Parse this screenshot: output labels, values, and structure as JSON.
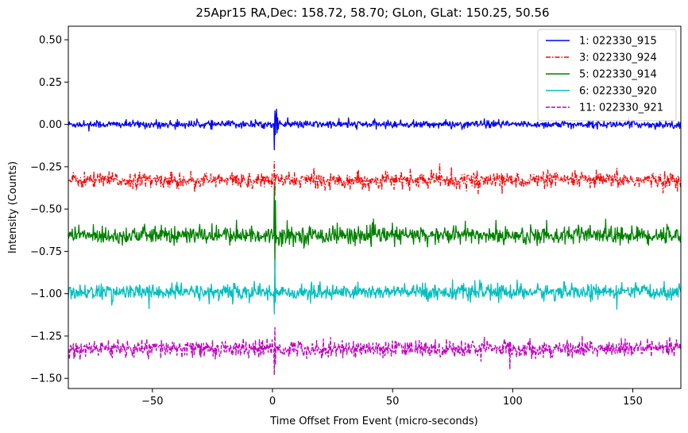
{
  "chart_data": {
    "type": "line",
    "title": "25Apr15 RA,Dec:  158.72,  58.70; GLon, GLat:  150.25,  50.56",
    "xlabel": "Time Offset From Event (micro-seconds)",
    "ylabel": "Intensity (Counts)",
    "xlim": [
      -85,
      170
    ],
    "ylim": [
      -1.56,
      0.58
    ],
    "xticks": [
      -50,
      0,
      50,
      100,
      150
    ],
    "xtick_labels": [
      "−50",
      "0",
      "50",
      "100",
      "150"
    ],
    "yticks": [
      0.5,
      0.25,
      0.0,
      -0.25,
      -0.5,
      -0.75,
      -1.0,
      -1.25,
      -1.5
    ],
    "ytick_labels": [
      "0.50",
      "0.25",
      "0.00",
      "−0.25",
      "−0.50",
      "−0.75",
      "−1.00",
      "−1.25",
      "−1.50"
    ],
    "legend_position": "top-right",
    "grid": false,
    "event_time": 0,
    "series": [
      {
        "name": "1: 022330_915",
        "color": "#0000ff",
        "style": "solid",
        "offset": 0.0,
        "noise_sigma": 0.012,
        "spike": {
          "x": 0.5,
          "values": [
            0.0,
            -0.15,
            0.08,
            -0.06,
            0.05,
            0.09,
            -0.05,
            0.04
          ]
        }
      },
      {
        "name": "3: 022330_924",
        "color": "#ff0000",
        "style": "dashdot",
        "offset": -0.33,
        "noise_sigma": 0.025,
        "spike": {
          "x": 0.5,
          "values": [
            -0.33,
            -0.22,
            -0.42,
            -0.3
          ]
        }
      },
      {
        "name": "5: 022330_914",
        "color": "#008000",
        "style": "solid",
        "offset": -0.655,
        "noise_sigma": 0.028,
        "spike": {
          "x": 0.5,
          "values": [
            -0.655,
            -0.35,
            -0.85,
            -0.45,
            -0.7
          ]
        }
      },
      {
        "name": "6: 022330_920",
        "color": "#00bfbf",
        "style": "solid",
        "offset": -0.99,
        "noise_sigma": 0.025,
        "spike": {
          "x": 0.5,
          "values": [
            -0.99,
            -1.12,
            -0.8,
            -1.05
          ]
        }
      },
      {
        "name": "11: 022330_921",
        "color": "#bf00bf",
        "style": "dashed",
        "offset": -1.325,
        "noise_sigma": 0.028,
        "spike": {
          "x": 0.5,
          "values": [
            -1.325,
            -1.48,
            -1.2,
            -1.42
          ]
        }
      }
    ]
  }
}
